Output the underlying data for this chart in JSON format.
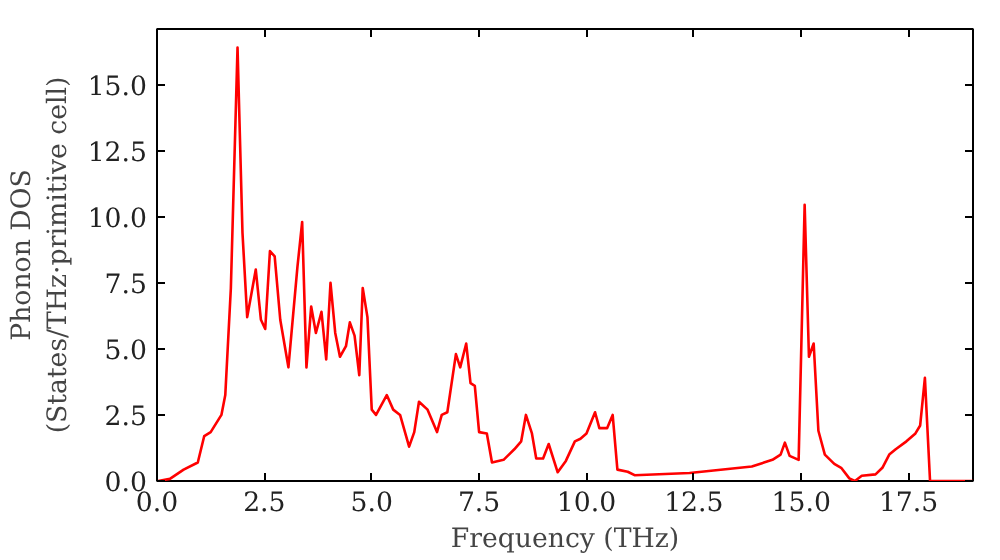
{
  "chart_data": {
    "type": "line",
    "xlabel": "Frequency (THz)",
    "ylabel": "Phonon DOS\n(States/THz·primitive cell)",
    "xlim": [
      0,
      19
    ],
    "ylim": [
      0,
      17.1
    ],
    "xticks": [
      {
        "value": 0,
        "label": "0.0"
      },
      2.5,
      {
        "value": 5,
        "label": "5.0"
      },
      7.5,
      {
        "value": 10,
        "label": "10.0"
      },
      12.5,
      {
        "value": 15,
        "label": "15.0"
      },
      17.5
    ],
    "yticks": [
      {
        "value": 0,
        "label": "0.0"
      },
      2.5,
      {
        "value": 5,
        "label": "5.0"
      },
      7.5,
      {
        "value": 10,
        "label": "10.0"
      },
      12.5,
      {
        "value": 15,
        "label": "15.0"
      }
    ],
    "grid": false,
    "series": [
      {
        "color": "#ff0000",
        "x": [
          0.03,
          0.3,
          0.62,
          0.95,
          1.1,
          1.25,
          1.5,
          1.59,
          1.72,
          1.875,
          1.99,
          2.1,
          2.3,
          2.42,
          2.52,
          2.63,
          2.74,
          2.87,
          3.06,
          3.27,
          3.38,
          3.48,
          3.59,
          3.7,
          3.83,
          3.94,
          4.04,
          4.15,
          4.26,
          4.4,
          4.49,
          4.6,
          4.71,
          4.79,
          4.9,
          5.0,
          5.1,
          5.35,
          5.5,
          5.66,
          5.87,
          5.99,
          6.1,
          6.3,
          6.52,
          6.63,
          6.76,
          6.96,
          7.06,
          7.2,
          7.3,
          7.4,
          7.5,
          7.68,
          7.8,
          8.07,
          8.32,
          8.48,
          8.59,
          8.73,
          8.83,
          8.99,
          9.12,
          9.33,
          9.52,
          9.73,
          9.86,
          10.0,
          10.2,
          10.3,
          10.48,
          10.61,
          10.72,
          10.96,
          11.12,
          12.4,
          13.85,
          14.33,
          14.52,
          14.62,
          14.73,
          14.94,
          15.08,
          15.18,
          15.29,
          15.4,
          15.55,
          15.77,
          15.93,
          16.12,
          16.25,
          16.41,
          16.73,
          16.89,
          17.05,
          17.2,
          17.45,
          17.66,
          17.77,
          17.88,
          18.0,
          19.0
        ],
        "values": [
          0.0,
          0.08,
          0.43,
          0.7,
          1.7,
          1.85,
          2.5,
          3.25,
          7.3,
          16.4,
          9.4,
          6.2,
          8.0,
          6.1,
          5.75,
          8.7,
          8.5,
          6.1,
          4.3,
          8.1,
          9.8,
          4.3,
          6.6,
          5.6,
          6.4,
          4.6,
          7.5,
          5.6,
          4.7,
          5.1,
          6.0,
          5.5,
          4.0,
          7.3,
          6.2,
          2.7,
          2.5,
          3.25,
          2.7,
          2.5,
          1.3,
          1.85,
          3.0,
          2.7,
          1.85,
          2.5,
          2.6,
          4.8,
          4.3,
          5.2,
          3.7,
          3.6,
          1.85,
          1.8,
          0.7,
          0.8,
          1.2,
          1.5,
          2.5,
          1.8,
          0.85,
          0.85,
          1.4,
          0.33,
          0.76,
          1.5,
          1.6,
          1.8,
          2.6,
          2.0,
          2.0,
          2.5,
          0.43,
          0.35,
          0.22,
          0.3,
          0.55,
          0.8,
          1.0,
          1.45,
          0.95,
          0.8,
          10.45,
          4.7,
          5.2,
          1.9,
          1.0,
          0.65,
          0.5,
          0.1,
          0.0,
          0.2,
          0.25,
          0.5,
          1.0,
          1.2,
          1.5,
          1.8,
          2.1,
          3.9,
          0.0,
          0.0
        ]
      }
    ]
  }
}
